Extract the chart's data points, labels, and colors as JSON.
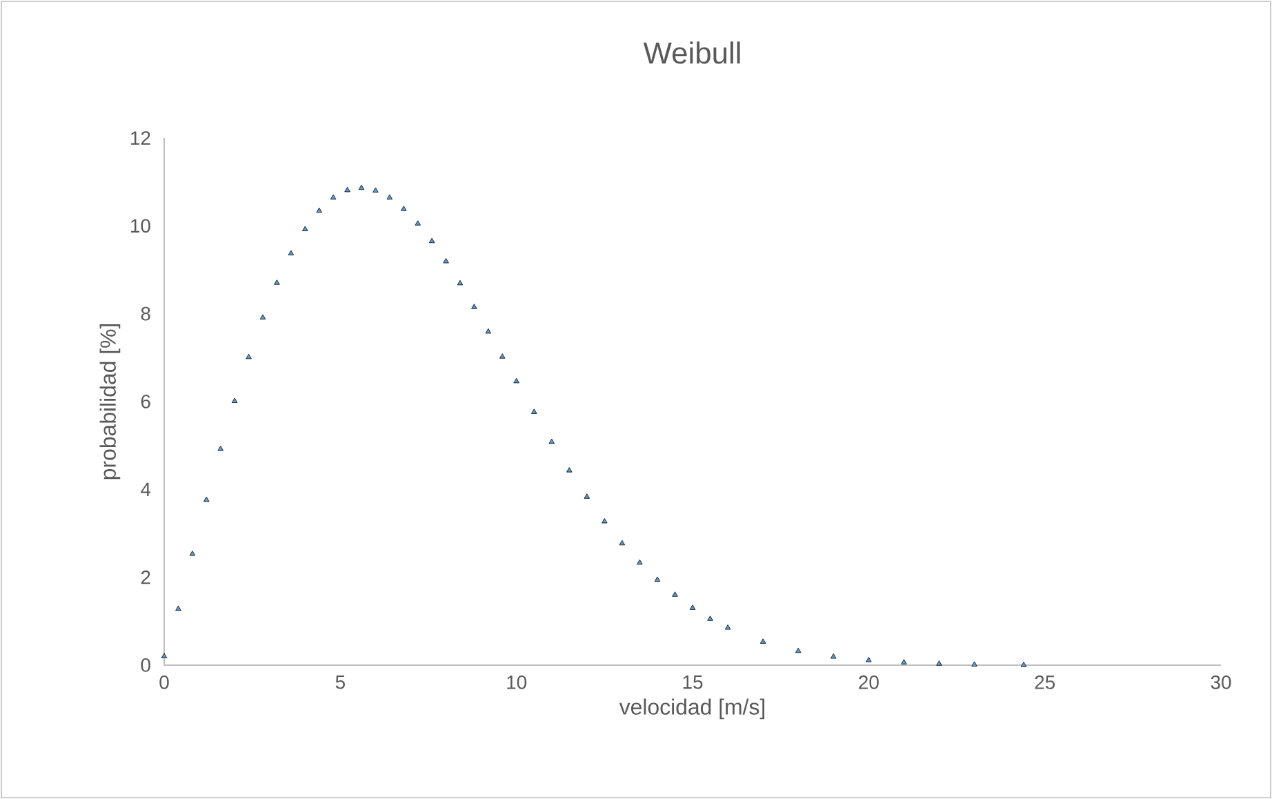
{
  "chart_data": {
    "type": "scatter",
    "title": "Weibull",
    "xlabel": "velocidad [m/s]",
    "ylabel": "probabilidad [%]",
    "x": [
      0,
      0.4,
      0.8,
      1.2,
      1.6,
      2.0,
      2.4,
      2.8,
      3.2,
      3.6,
      4.0,
      4.4,
      4.8,
      5.2,
      5.6,
      6.0,
      6.4,
      6.8,
      7.2,
      7.6,
      8.0,
      8.4,
      8.8,
      9.2,
      9.6,
      10.0,
      10.5,
      11.0,
      11.5,
      12.0,
      12.5,
      13.0,
      13.5,
      14.0,
      14.5,
      15.0,
      15.5,
      16.0,
      17.0,
      18.0,
      19.0,
      20.0,
      21.0,
      22.0,
      23.0,
      24.4
    ],
    "values": [
      0.2,
      1.28,
      2.53,
      3.76,
      4.92,
      6.01,
      7.01,
      7.91,
      8.7,
      9.37,
      9.92,
      10.34,
      10.64,
      10.81,
      10.86,
      10.8,
      10.64,
      10.38,
      10.05,
      9.65,
      9.19,
      8.69,
      8.15,
      7.59,
      7.02,
      6.46,
      5.76,
      5.08,
      4.43,
      3.83,
      3.27,
      2.77,
      2.33,
      1.94,
      1.6,
      1.3,
      1.05,
      0.85,
      0.53,
      0.32,
      0.19,
      0.11,
      0.06,
      0.03,
      0.01,
      0.0
    ],
    "color": "#5b9bd5",
    "marker": "triangle",
    "xlim": [
      0,
      30
    ],
    "ylim": [
      0,
      12
    ],
    "xticks": [
      0,
      5,
      10,
      15,
      20,
      25,
      30
    ],
    "yticks": [
      0,
      2,
      4,
      6,
      8,
      10,
      12
    ]
  }
}
